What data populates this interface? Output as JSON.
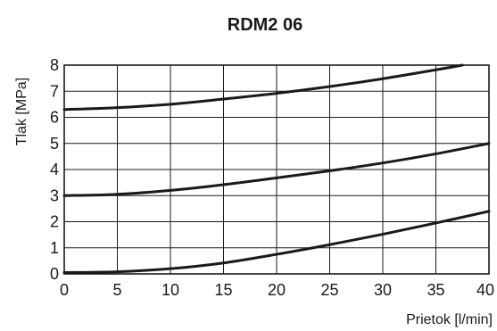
{
  "chart_data": {
    "type": "line",
    "title": "RDM2 06",
    "xlabel": "Prietok [l/min]",
    "ylabel": "Tlak [MPa]",
    "xlim": [
      0,
      40
    ],
    "ylim": [
      0,
      8
    ],
    "xticks": [
      0,
      5,
      10,
      15,
      20,
      25,
      30,
      35,
      40
    ],
    "yticks": [
      0,
      1,
      2,
      3,
      4,
      5,
      6,
      7,
      8
    ],
    "grid": true,
    "legend": "none",
    "series": [
      {
        "x": [
          0,
          5,
          10,
          15,
          20,
          25,
          30,
          35,
          40
        ],
        "y": [
          0.05,
          0.08,
          0.2,
          0.42,
          0.75,
          1.12,
          1.52,
          1.95,
          2.4
        ]
      },
      {
        "x": [
          0,
          5,
          10,
          15,
          20,
          25,
          30,
          35,
          40
        ],
        "y": [
          3.0,
          3.05,
          3.2,
          3.42,
          3.68,
          3.95,
          4.25,
          4.6,
          5.0
        ]
      },
      {
        "x": [
          0,
          5,
          10,
          15,
          20,
          25,
          30,
          35,
          37.5
        ],
        "y": [
          6.3,
          6.37,
          6.5,
          6.7,
          6.92,
          7.18,
          7.48,
          7.82,
          8.0
        ]
      }
    ],
    "colors": {
      "line": "#1a1a1a",
      "grid": "#1a1a1a",
      "background": "#ffffff"
    }
  }
}
